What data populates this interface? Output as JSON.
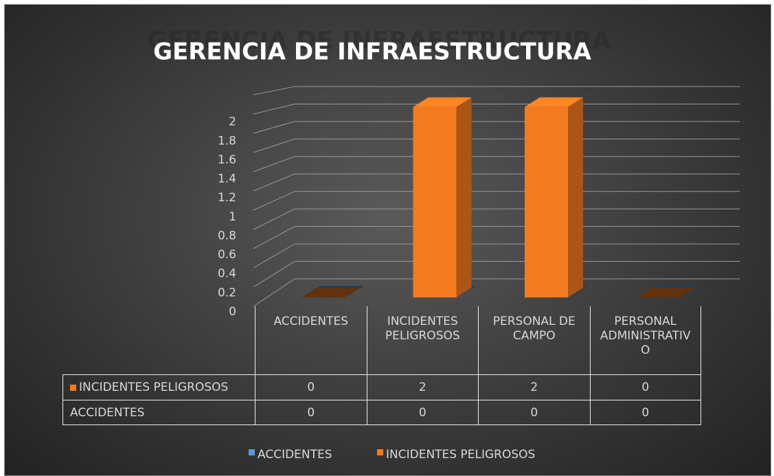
{
  "chart_data": {
    "type": "bar3d",
    "title": "GERENCIA DE INFRAESTRUCTURA",
    "categories": [
      "ACCIDENTES",
      "INCIDENTES PELIGROSOS",
      "PERSONAL DE CAMPO",
      "PERSONAL ADMINISTRATIVO"
    ],
    "series": [
      {
        "name": "ACCIDENTES",
        "color": "#5b9bd5",
        "values": [
          0,
          0,
          0,
          0
        ]
      },
      {
        "name": "INCIDENTES PELIGROSOS",
        "color": "#f47a20",
        "values": [
          0,
          2,
          2,
          0
        ]
      }
    ],
    "ylim": [
      0,
      2.2
    ],
    "yticks": [
      0,
      0.2,
      0.4,
      0.6,
      0.8,
      1,
      1.2,
      1.4,
      1.6,
      1.8,
      2
    ],
    "grid": true,
    "legend": "bottom"
  }
}
